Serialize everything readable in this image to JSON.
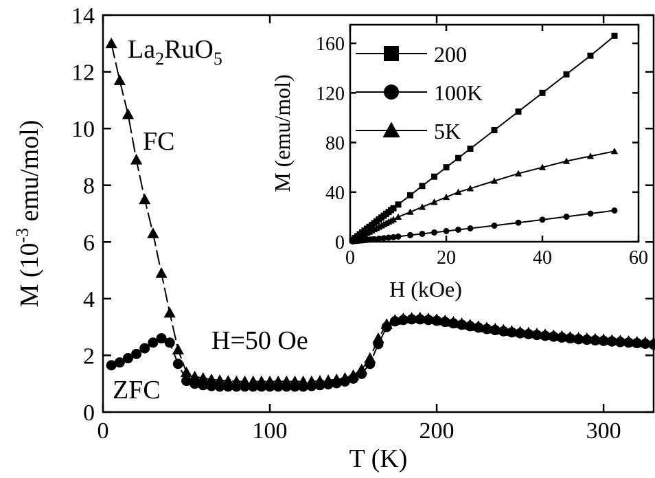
{
  "chart_data": [
    {
      "type": "scatter",
      "xlabel": "T (K)",
      "ylabel_prefix": "M (10",
      "ylabel_exponent": "-3",
      "ylabel_suffix": " emu/mol)",
      "xlim": [
        0,
        330
      ],
      "ylim": [
        0,
        14
      ],
      "xticks": [
        0,
        100,
        200,
        300
      ],
      "yticks": [
        0,
        2,
        4,
        6,
        8,
        10,
        12,
        14
      ],
      "annotations": {
        "compound_main_1": "La",
        "compound_sub_1": "2",
        "compound_main_2": "RuO",
        "compound_sub_2": "5",
        "fc": "FC",
        "zfc": "ZFC",
        "field": "H=50 Oe"
      },
      "series": [
        {
          "name": "FC",
          "marker": "triangle",
          "x": [
            5,
            10,
            15,
            20,
            25,
            30,
            35,
            40,
            45,
            50,
            55,
            60,
            65,
            70,
            75,
            80,
            85,
            90,
            95,
            100,
            105,
            110,
            115,
            120,
            125,
            130,
            135,
            140,
            145,
            150,
            155,
            160,
            165,
            170,
            175,
            180,
            185,
            190,
            195,
            200,
            205,
            210,
            215,
            220,
            225,
            230,
            235,
            240,
            245,
            250,
            255,
            260,
            265,
            270,
            275,
            280,
            285,
            290,
            295,
            300,
            305,
            310,
            315,
            320,
            325,
            330
          ],
          "y": [
            13.0,
            11.7,
            10.5,
            8.9,
            7.5,
            6.3,
            4.9,
            3.5,
            2.2,
            1.4,
            1.25,
            1.2,
            1.15,
            1.12,
            1.1,
            1.08,
            1.08,
            1.08,
            1.08,
            1.08,
            1.08,
            1.08,
            1.08,
            1.08,
            1.08,
            1.1,
            1.12,
            1.15,
            1.2,
            1.3,
            1.5,
            1.9,
            2.6,
            3.1,
            3.25,
            3.3,
            3.32,
            3.33,
            3.3,
            3.27,
            3.23,
            3.18,
            3.13,
            3.08,
            3.03,
            2.98,
            2.94,
            2.9,
            2.86,
            2.83,
            2.8,
            2.77,
            2.74,
            2.71,
            2.68,
            2.65,
            2.62,
            2.6,
            2.58,
            2.56,
            2.54,
            2.52,
            2.5,
            2.48,
            2.46,
            2.45
          ]
        },
        {
          "name": "ZFC",
          "marker": "circle",
          "x": [
            5,
            10,
            15,
            20,
            25,
            30,
            35,
            40,
            45,
            50,
            55,
            60,
            65,
            70,
            75,
            80,
            85,
            90,
            95,
            100,
            105,
            110,
            115,
            120,
            125,
            130,
            135,
            140,
            145,
            150,
            155,
            160,
            165,
            170,
            175,
            180,
            185,
            190,
            195,
            200,
            205,
            210,
            215,
            220,
            225,
            230,
            235,
            240,
            245,
            250,
            255,
            260,
            265,
            270,
            275,
            280,
            285,
            290,
            295,
            300,
            305,
            310,
            315,
            320,
            325,
            330
          ],
          "y": [
            1.65,
            1.75,
            1.9,
            2.05,
            2.25,
            2.45,
            2.6,
            2.45,
            1.7,
            1.1,
            1.0,
            0.95,
            0.92,
            0.9,
            0.9,
            0.9,
            0.9,
            0.9,
            0.9,
            0.9,
            0.9,
            0.9,
            0.9,
            0.9,
            0.92,
            0.95,
            0.98,
            1.02,
            1.08,
            1.18,
            1.35,
            1.7,
            2.4,
            3.0,
            3.2,
            3.25,
            3.27,
            3.27,
            3.25,
            3.22,
            3.18,
            3.13,
            3.08,
            3.03,
            2.98,
            2.93,
            2.89,
            2.85,
            2.81,
            2.78,
            2.75,
            2.72,
            2.69,
            2.66,
            2.63,
            2.6,
            2.57,
            2.55,
            2.53,
            2.51,
            2.49,
            2.47,
            2.45,
            2.43,
            2.41,
            2.38
          ]
        }
      ]
    },
    {
      "type": "scatter",
      "xlabel": "H (kOe)",
      "ylabel": "M (emu/mol)",
      "xlim": [
        0,
        60
      ],
      "ylim": [
        0,
        175
      ],
      "xticks": [
        0,
        20,
        40,
        60
      ],
      "yticks": [
        0,
        40,
        80,
        120,
        160
      ],
      "legend_placement": "top-left",
      "series": [
        {
          "name": "200",
          "marker": "square",
          "x": [
            0.5,
            1,
            1.5,
            2,
            2.5,
            3,
            3.5,
            4,
            4.5,
            5,
            5.5,
            6,
            6.5,
            7,
            7.5,
            8,
            8.5,
            9,
            10,
            12.5,
            15,
            17.5,
            20,
            22.5,
            25,
            30,
            35,
            40,
            45,
            50,
            55
          ],
          "y": [
            1.5,
            3,
            4.5,
            6,
            7.5,
            9,
            10.5,
            12,
            13.5,
            15,
            16.5,
            18,
            19.5,
            21,
            22.5,
            24,
            25.5,
            27,
            30,
            37.5,
            45,
            52.5,
            60,
            67.5,
            75,
            90,
            105,
            120,
            135,
            150,
            166
          ]
        },
        {
          "name": "100K",
          "marker": "circle",
          "x": [
            0.5,
            1,
            1.5,
            2,
            2.5,
            3,
            3.5,
            4,
            4.5,
            5,
            6,
            7,
            8,
            9,
            10,
            12.5,
            15,
            17.5,
            20,
            22.5,
            25,
            30,
            35,
            40,
            45,
            50,
            55
          ],
          "y": [
            0.3,
            0.5,
            0.7,
            0.9,
            1.1,
            1.3,
            1.5,
            1.7,
            1.9,
            2.1,
            2.5,
            2.9,
            3.3,
            3.7,
            4.2,
            5.3,
            6.4,
            7.5,
            8.6,
            9.7,
            10.8,
            13,
            15.4,
            17.8,
            20.2,
            22.7,
            25.2
          ]
        },
        {
          "name": "5K",
          "marker": "triangle",
          "x": [
            0.5,
            1,
            1.5,
            2,
            2.5,
            3,
            3.5,
            4,
            4.5,
            5,
            5.5,
            6,
            6.5,
            7,
            7.5,
            8,
            8.5,
            9,
            10,
            12.5,
            15,
            17.5,
            20,
            22.5,
            25,
            30,
            35,
            40,
            45,
            50,
            55
          ],
          "y": [
            1,
            2,
            3,
            4,
            5,
            6,
            7,
            8,
            9,
            10,
            11,
            12,
            13,
            14,
            15,
            16,
            17,
            18,
            20,
            24,
            28,
            32,
            36,
            40,
            43,
            49,
            55,
            60,
            65,
            69,
            73
          ]
        }
      ]
    }
  ]
}
